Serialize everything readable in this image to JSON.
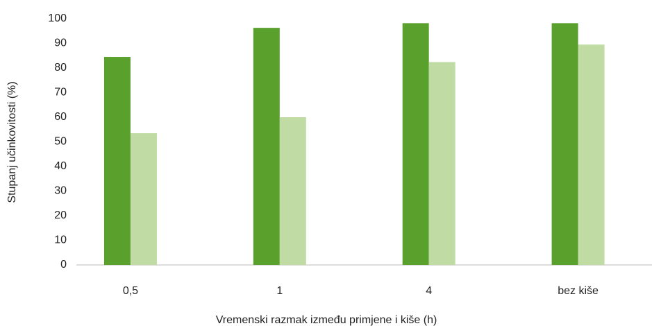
{
  "chart_data": {
    "type": "bar",
    "x_label": "Vremenski razmak između primjene i kiše (h)",
    "y_label": "Stupanj učinkovitosti (%)",
    "categories": [
      "0,5",
      "1",
      "4",
      "bez kiše"
    ],
    "series": [
      {
        "color": "#5aa02c",
        "values": [
          84.5,
          96.3,
          98.2,
          98.2
        ]
      },
      {
        "color": "#c0dca4",
        "values": [
          53.5,
          60,
          82.4,
          89.5
        ]
      }
    ],
    "ylim": [
      0,
      100
    ],
    "yticks": [
      0,
      10,
      20,
      30,
      40,
      50,
      60,
      70,
      80,
      90,
      100
    ],
    "grid": false
  }
}
